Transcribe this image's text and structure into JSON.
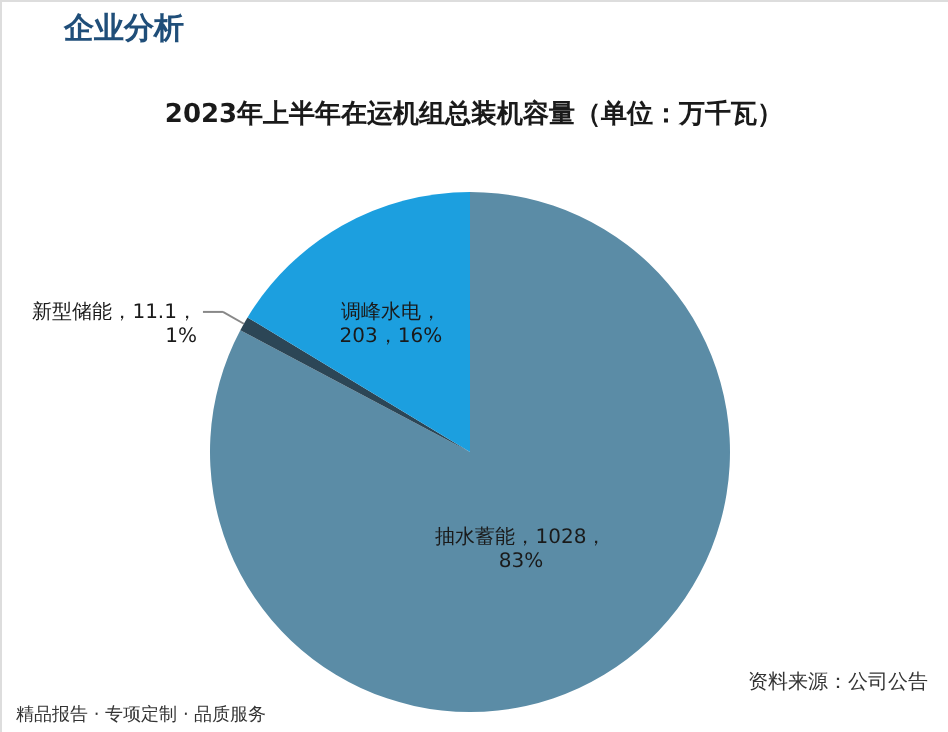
{
  "chart_data": {
    "type": "pie",
    "title": "2023年上半年在运机组总装机容量（单位：万千瓦）",
    "categories": [
      "抽水蓄能",
      "新型储能",
      "调峰水电"
    ],
    "values": [
      1028,
      11.1,
      203
    ],
    "colors": [
      "#5b8ca6",
      "#2c4656",
      "#1c9fdf"
    ],
    "value_labels": [
      "，1028，\n83%",
      "，11.1，\n1%",
      "，\n203，16%"
    ],
    "annotations": [
      "企业分析",
      "资料来源：公司公告",
      "精品报告 · 专项定制 · 品质服务"
    ]
  }
}
